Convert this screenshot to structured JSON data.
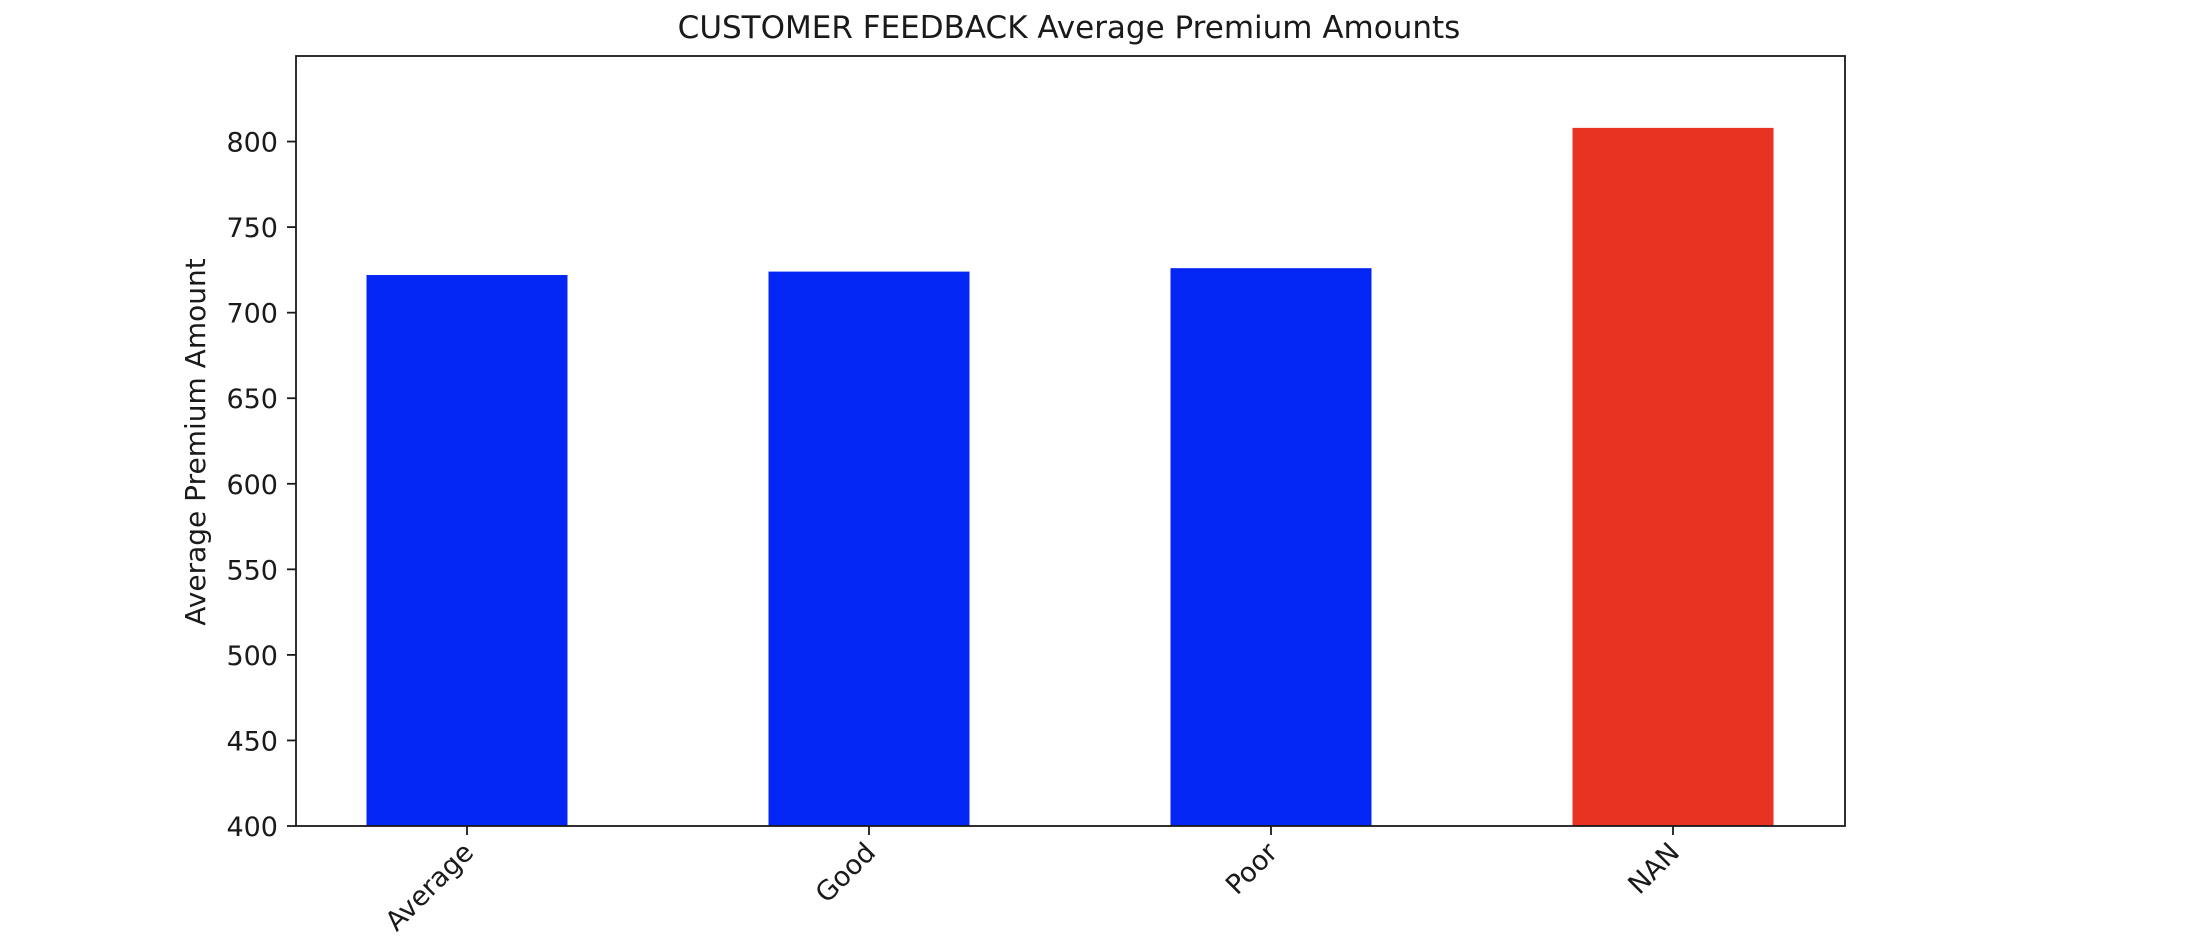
{
  "chart_data": {
    "type": "bar",
    "title": "CUSTOMER FEEDBACK Average Premium Amounts",
    "xlabel": "",
    "ylabel": "Average Premium Amount",
    "categories": [
      "Average",
      "Good",
      "Poor",
      "NAN"
    ],
    "values": [
      722,
      724,
      726,
      808
    ],
    "bar_colors": [
      "#0326f4",
      "#0326f4",
      "#0326f4",
      "#e83323"
    ],
    "ylim": [
      400,
      850
    ],
    "yticks": [
      400,
      450,
      500,
      550,
      600,
      650,
      700,
      750,
      800
    ],
    "grid": false,
    "legend": "none"
  }
}
